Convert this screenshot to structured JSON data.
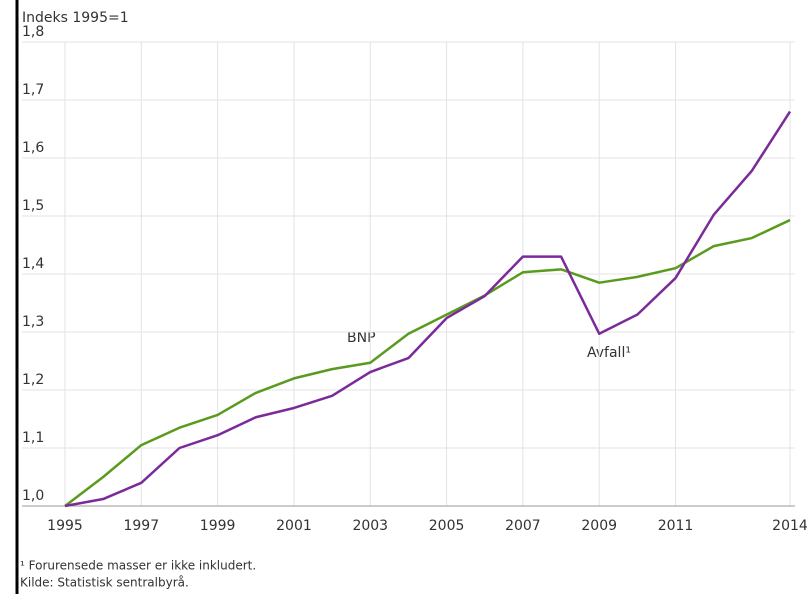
{
  "chart_data": {
    "type": "line",
    "y_label": "Indeks 1995=1",
    "x": [
      1995,
      1996,
      1997,
      1998,
      1999,
      2000,
      2001,
      2002,
      2003,
      2004,
      2005,
      2006,
      2007,
      2008,
      2009,
      2010,
      2011,
      2012,
      2013,
      2014
    ],
    "series": [
      {
        "name": "BNP",
        "color": "#5a9a1e",
        "values": [
          1.0,
          1.05,
          1.105,
          1.135,
          1.157,
          1.195,
          1.22,
          1.236,
          1.247,
          1.297,
          1.33,
          1.363,
          1.403,
          1.408,
          1.385,
          1.395,
          1.41,
          1.448,
          1.462,
          1.493
        ]
      },
      {
        "name": "Avfall¹",
        "color": "#7b2a9a",
        "values": [
          1.0,
          1.012,
          1.04,
          1.1,
          1.122,
          1.153,
          1.169,
          1.19,
          1.231,
          1.255,
          1.324,
          1.362,
          1.43,
          1.43,
          1.297,
          1.33,
          1.393,
          1.502,
          1.578,
          1.68
        ]
      }
    ],
    "xlim": [
      1995,
      2014
    ],
    "xticks": [
      1995,
      1997,
      1999,
      2001,
      2003,
      2005,
      2007,
      2009,
      2011,
      2014
    ],
    "ylim": [
      1.0,
      1.8
    ],
    "yticks": [
      {
        "value": 1.0,
        "label": "1,0"
      },
      {
        "value": 1.1,
        "label": "1,1"
      },
      {
        "value": 1.2,
        "label": "1,2"
      },
      {
        "value": 1.3,
        "label": "1,3"
      },
      {
        "value": 1.4,
        "label": "1,4"
      },
      {
        "value": 1.5,
        "label": "1,5"
      },
      {
        "value": 1.6,
        "label": "1,6"
      },
      {
        "value": 1.7,
        "label": "1,7"
      },
      {
        "value": 1.8,
        "label": "1,8"
      }
    ],
    "grid": true,
    "footnotes": [
      "¹ Forurensede masser er ikke inkludert.",
      "Kilde: Statistisk sentralbyrå."
    ]
  }
}
